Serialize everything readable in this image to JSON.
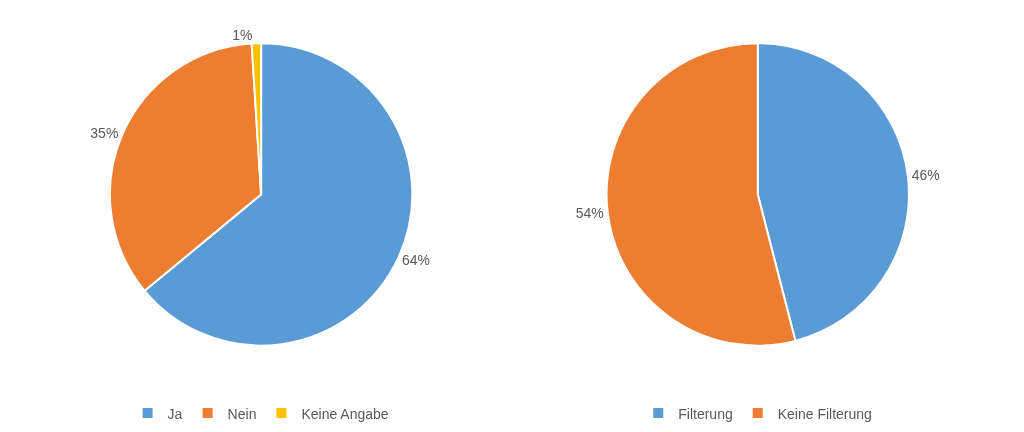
{
  "chart_data": [
    {
      "type": "pie",
      "categories": [
        "Ja",
        "Nein",
        "Keine Angabe"
      ],
      "values": [
        64,
        35,
        1
      ],
      "colors": [
        "#5b9bd5",
        "#ed7d31",
        "#ffc000"
      ],
      "value_labels": [
        "64%",
        "35%",
        "1%"
      ],
      "legend": "bottom"
    },
    {
      "type": "pie",
      "categories": [
        "Filterung",
        "Keine Filterung"
      ],
      "values": [
        46,
        54
      ],
      "colors": [
        "#5b9bd5",
        "#ed7d31"
      ],
      "value_labels": [
        "46%",
        "54%"
      ],
      "legend": "bottom"
    }
  ]
}
